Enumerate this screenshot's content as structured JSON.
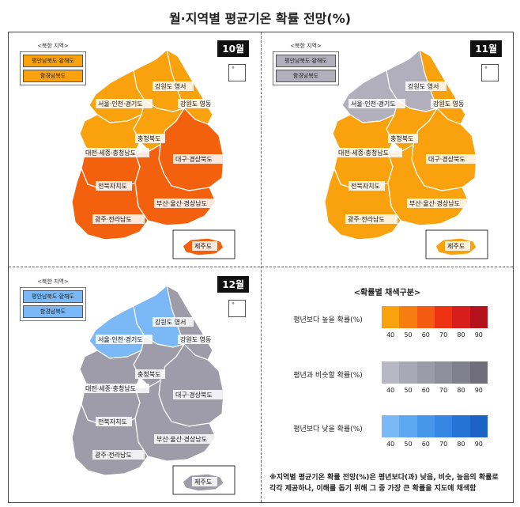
{
  "title": "월·지역별 평균기온 확률 전망(%)",
  "north": {
    "header": "<북한 지역>",
    "items": [
      "평안남북도·황해도",
      "함경남북도"
    ]
  },
  "dokdo_mark": "°",
  "region_labels": [
    "강원도 영서",
    "서울·인천·경기도",
    "강원도 영동",
    "충청북도",
    "대전·세종·충청남도",
    "대구·경상북도",
    "전북자치도",
    "부산·울산·경상남도",
    "광주·전라남도",
    "제주도"
  ],
  "panels": [
    {
      "month": "10월",
      "colors": {
        "north_nw": "#f9a20d",
        "north_ne": "#f9a20d",
        "gangwon_w": "#f9a20d",
        "gangwon_e": "#f9a20d",
        "sudo": "#f9a20d",
        "chungbuk": "#f9a20d",
        "chungnam": "#f9a20d",
        "gyeongbuk": "#f4610e",
        "jeonbuk": "#f4610e",
        "gyeongnam": "#f4610e",
        "jeonnam": "#f4610e",
        "jeju": "#f4610e"
      }
    },
    {
      "month": "11월",
      "colors": {
        "north_nw": "#b0afbb",
        "north_ne": "#b0afbb",
        "gangwon_w": "#b0afbb",
        "gangwon_e": "#f9a20d",
        "sudo": "#b0afbb",
        "chungbuk": "#f9a20d",
        "chungnam": "#f9a20d",
        "gyeongbuk": "#f9a20d",
        "jeonbuk": "#f9a20d",
        "gyeongnam": "#f9a20d",
        "jeonnam": "#f9a20d",
        "jeju": "#f9a20d"
      }
    },
    {
      "month": "12월",
      "colors": {
        "north_nw": "#7ab8f6",
        "north_ne": "#7ab8f6",
        "gangwon_w": "#7ab8f6",
        "gangwon_e": "#9d9ca8",
        "sudo": "#7ab8f6",
        "chungbuk": "#9d9ca8",
        "chungnam": "#9d9ca8",
        "gyeongbuk": "#9d9ca8",
        "jeonbuk": "#9d9ca8",
        "gyeongnam": "#9d9ca8",
        "jeonnam": "#9d9ca8",
        "jeju": "#9d9ca8"
      }
    }
  ],
  "legend": {
    "title": "<확률별 채색구분>",
    "ticks": [
      "40",
      "50",
      "60",
      "70",
      "80",
      "90"
    ],
    "rows": [
      {
        "label": "평년보다 높을 확률(%)",
        "colors": [
          "#f9a20d",
          "#f67d0f",
          "#f45a12",
          "#ee3313",
          "#d81d1d",
          "#b4121c"
        ]
      },
      {
        "label": "평년과 비슷할 확률(%)",
        "colors": [
          "#b8b7c4",
          "#a9a8b5",
          "#9c9ba8",
          "#8f8e9b",
          "#807f8c",
          "#6e6d79"
        ]
      },
      {
        "label": "평년보다 낮을 확률(%)",
        "colors": [
          "#7ab8f6",
          "#5ea8f2",
          "#4697ea",
          "#3586e2",
          "#2673d6",
          "#1d63c6"
        ]
      }
    ]
  },
  "note": "※지역별 평균기온 확률 전망(%)은 평년보다(과) 낮음, 비슷, 높음의 확률로 각각 제공하나, 이해를 돕기 위해 그 중 가장 큰 확률을 지도에 채색함"
}
